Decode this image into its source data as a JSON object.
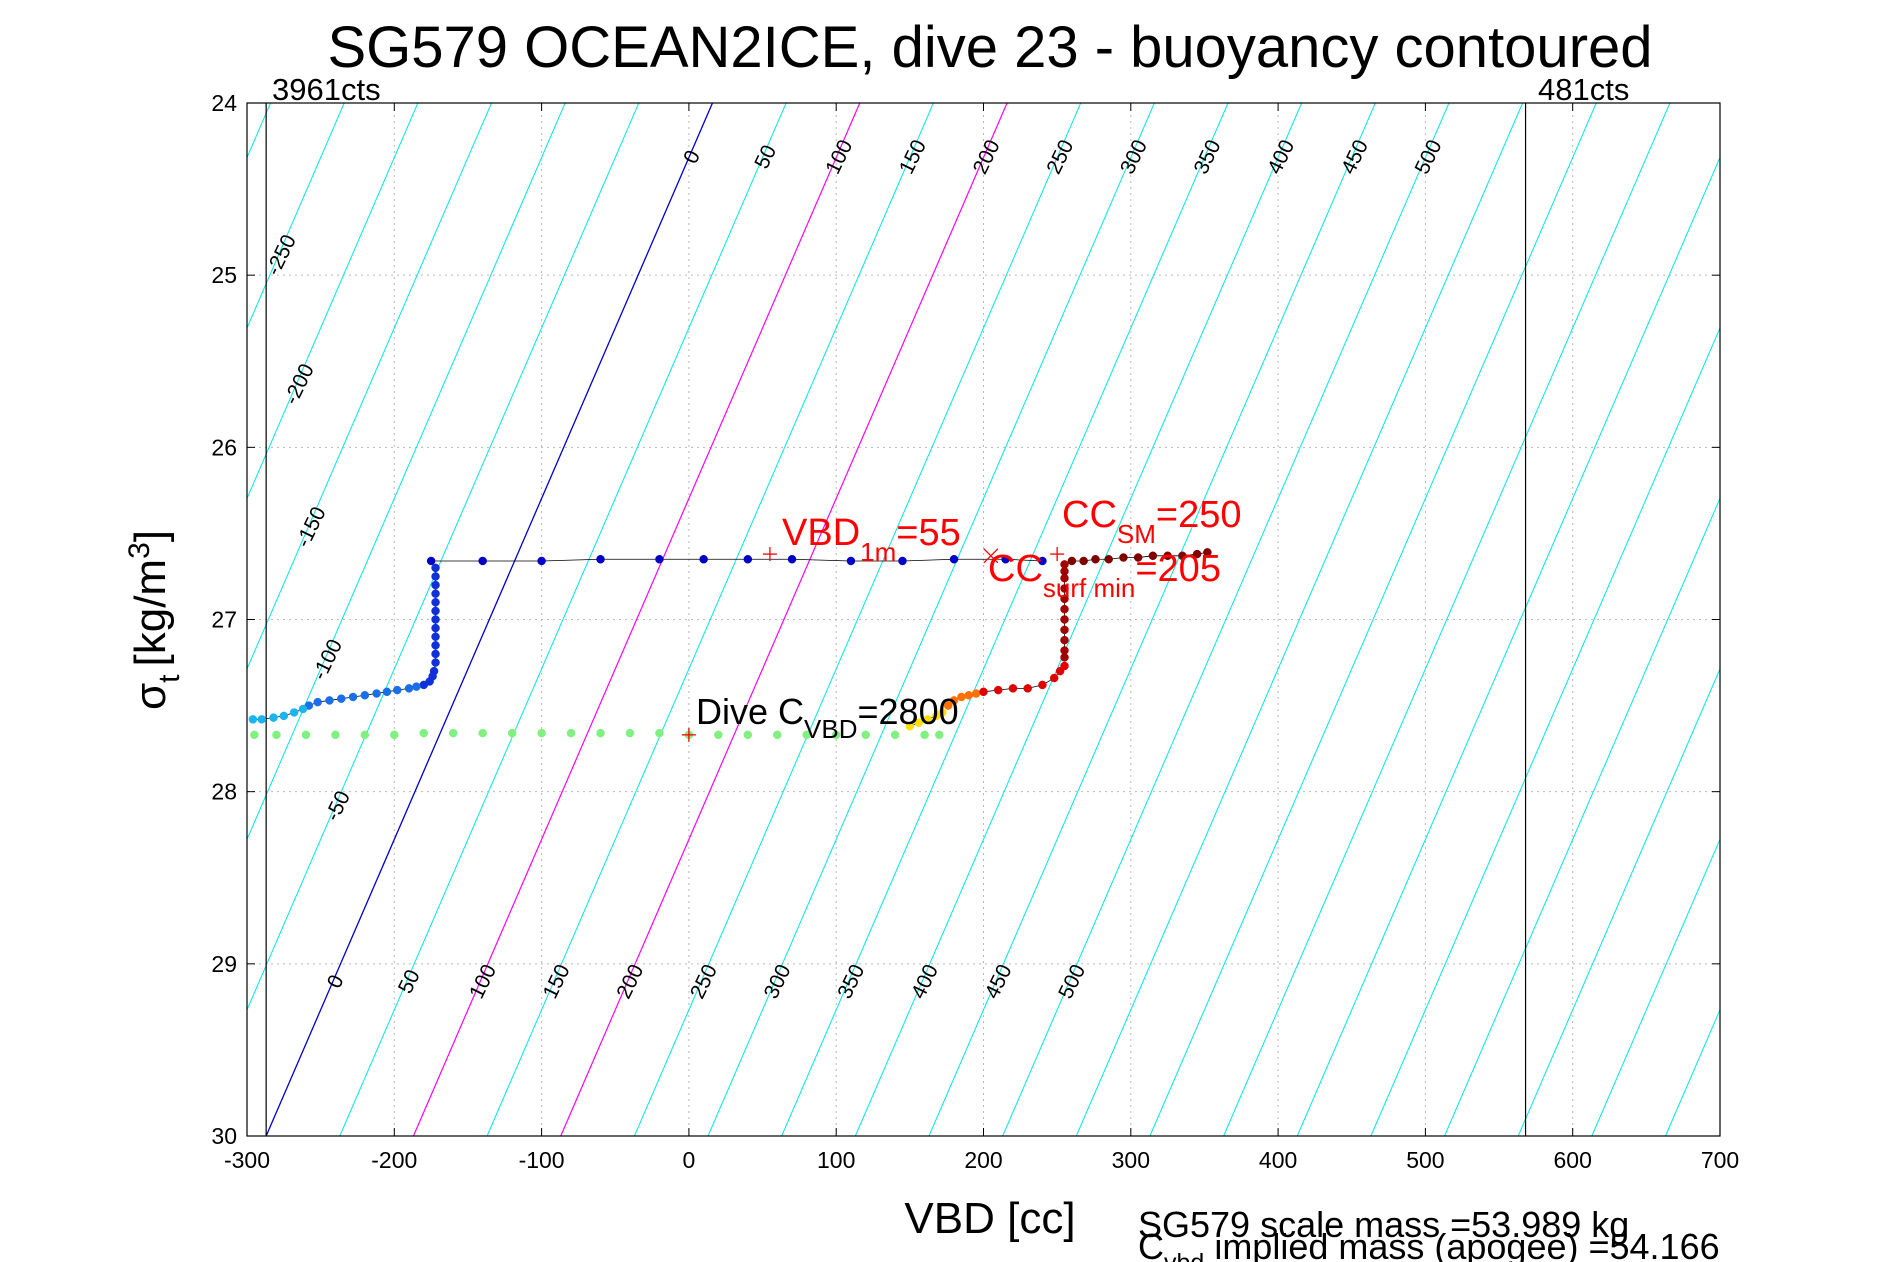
{
  "chart_data": {
    "type": "scatter",
    "title": "SG579 OCEAN2ICE, dive 23 - buoyancy contoured",
    "xlabel": "VBD [cc]",
    "ylabel": {
      "main": "σ",
      "sub": "t",
      "unit_prefix": "[kg/m",
      "unit_sup": "3",
      "unit_suffix": "]"
    },
    "xlim": [
      -300,
      700
    ],
    "ylim": [
      24,
      30
    ],
    "y_reversed": true,
    "grid": true,
    "xticks": [
      -300,
      -200,
      -100,
      0,
      100,
      200,
      300,
      400,
      500,
      600,
      700
    ],
    "yticks": [
      24,
      25,
      26,
      27,
      28,
      29,
      30
    ],
    "count_lines": [
      {
        "x": -287,
        "label": "3961cts"
      },
      {
        "x": 568,
        "label": "481cts"
      }
    ],
    "contours": {
      "top_labels": [
        "0",
        "50",
        "100",
        "150",
        "200",
        "250",
        "300",
        "350",
        "400",
        "450",
        "500"
      ],
      "bottom_labels": [
        "0",
        "50",
        "100",
        "150",
        "200",
        "250",
        "300",
        "350",
        "400",
        "450",
        "500"
      ],
      "left_labels": [
        "-250",
        "-200",
        "-150",
        "-100",
        "-50"
      ],
      "spacing_cc": 50,
      "zero_line_at_sigma24": 16,
      "zero_line_at_sigma30": -287,
      "colors": {
        "cyan": "#00e6e6",
        "zero": "#0000cc",
        "highlight": "#ff00ff"
      }
    },
    "series": [
      {
        "color": "#0000c8",
        "x": [
          -175,
          -140,
          -100,
          -60,
          -20,
          10,
          40,
          70,
          110,
          145,
          180,
          215,
          240
        ],
        "y": [
          26.66,
          26.66,
          26.66,
          26.65,
          26.65,
          26.65,
          26.65,
          26.65,
          26.66,
          26.66,
          26.65,
          26.65,
          26.66
        ]
      },
      {
        "color": "#1030d8",
        "x": [
          -172,
          -172,
          -172,
          -172,
          -172,
          -172,
          -172,
          -172,
          -172,
          -172,
          -172,
          -172,
          -173,
          -174,
          -176,
          -180
        ],
        "y": [
          26.7,
          26.75,
          26.8,
          26.85,
          26.9,
          26.95,
          27.0,
          27.05,
          27.1,
          27.15,
          27.2,
          27.25,
          27.3,
          27.33,
          27.36,
          27.38
        ]
      },
      {
        "color": "#1a6ee8",
        "x": [
          -185,
          -190,
          -198,
          -205,
          -212,
          -220,
          -228,
          -236,
          -244,
          -252,
          -258
        ],
        "y": [
          27.39,
          27.4,
          27.41,
          27.42,
          27.43,
          27.44,
          27.45,
          27.46,
          27.47,
          27.48,
          27.5
        ]
      },
      {
        "color": "#1ab4f0",
        "x": [
          -262,
          -268,
          -275,
          -282,
          -290,
          -296
        ],
        "y": [
          27.52,
          27.54,
          27.56,
          27.57,
          27.58,
          27.58
        ]
      },
      {
        "color": "#80f080",
        "x": [
          -295,
          -280,
          -260,
          -240,
          -220,
          -200,
          -180,
          -160,
          -140,
          -120,
          -100,
          -80,
          -60,
          -40,
          -20,
          0,
          20,
          40,
          60,
          80,
          100,
          120,
          140,
          160,
          170
        ],
        "y": [
          27.67,
          27.67,
          27.67,
          27.67,
          27.67,
          27.67,
          27.66,
          27.66,
          27.66,
          27.66,
          27.66,
          27.66,
          27.66,
          27.66,
          27.66,
          27.67,
          27.67,
          27.67,
          27.67,
          27.67,
          27.67,
          27.67,
          27.67,
          27.67,
          27.67
        ]
      },
      {
        "color": "#ffe000",
        "x": [
          150,
          156,
          162,
          168,
          172
        ],
        "y": [
          27.62,
          27.6,
          27.58,
          27.56,
          27.54
        ]
      },
      {
        "color": "#ff7000",
        "x": [
          176,
          180,
          185,
          190,
          195
        ],
        "y": [
          27.5,
          27.47,
          27.45,
          27.44,
          27.43
        ]
      },
      {
        "color": "#e00000",
        "x": [
          200,
          210,
          220,
          230,
          240,
          248,
          252,
          255
        ],
        "y": [
          27.42,
          27.41,
          27.4,
          27.4,
          27.38,
          27.34,
          27.3,
          27.27
        ]
      },
      {
        "color": "#a00000",
        "x": [
          255,
          255,
          255,
          255,
          255,
          255,
          255,
          255,
          255,
          255,
          255
        ],
        "y": [
          27.22,
          27.18,
          27.12,
          27.06,
          27.0,
          26.94,
          26.88,
          26.82,
          26.76,
          26.72,
          26.68
        ]
      },
      {
        "color": "#800000",
        "x": [
          260,
          268,
          276,
          285,
          295,
          305,
          315,
          325,
          335,
          345,
          352
        ],
        "y": [
          26.66,
          26.66,
          26.65,
          26.65,
          26.64,
          26.64,
          26.63,
          26.63,
          26.63,
          26.62,
          26.61
        ]
      }
    ],
    "markers": [
      {
        "kind": "plus",
        "x": 55,
        "y": 26.62,
        "color": "#ff0000"
      },
      {
        "kind": "cross",
        "x": 205,
        "y": 26.63,
        "color": "#ff0000"
      },
      {
        "kind": "plus",
        "x": 250,
        "y": 26.62,
        "color": "#ff0000"
      },
      {
        "kind": "plus",
        "x": 0,
        "y": 27.67,
        "color": "#ff0000"
      }
    ],
    "annotations": {
      "vbd1m": {
        "main": "VBD",
        "sub": "1m",
        "value": "=55"
      },
      "cc_sm": {
        "main": "CC",
        "sub": "SM",
        "value": "=250"
      },
      "cc_surf": {
        "main": "CC",
        "sub": "surf min",
        "value": "=205"
      },
      "dive_c": {
        "main": "Dive C",
        "sub": "VBD",
        "value": "=2800"
      }
    },
    "footer": {
      "line1": "SG579 scale mass =53.989 kg",
      "line2_main": "C",
      "line2_sub": "vbd",
      "line2_rest": " implied mass (apogee) =54.166"
    }
  }
}
